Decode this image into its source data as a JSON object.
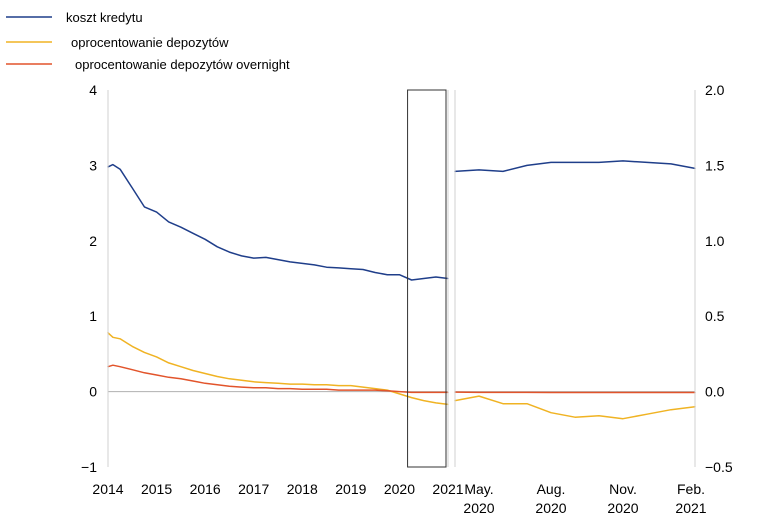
{
  "chart_data": [
    {
      "type": "line",
      "panel": "left",
      "xlim": [
        2014,
        2021
      ],
      "ylim": [
        -1,
        4
      ],
      "x_ticks": [
        2014,
        2015,
        2016,
        2017,
        2018,
        2019,
        2020,
        2021
      ],
      "x_tick_labels": [
        "2014",
        "2015",
        "2016",
        "2017",
        "2018",
        "2019",
        "2020",
        "2021"
      ],
      "y_ticks": [
        -1,
        0,
        1,
        2,
        3,
        4
      ],
      "y_tick_labels": [
        "−1",
        "0",
        "1",
        "2",
        "3",
        "4"
      ],
      "highlight_box": [
        2020.25,
        2021
      ],
      "series": [
        {
          "name": "koszt kredytu",
          "color": "#1f3e8a",
          "x": [
            2014,
            2014.1,
            2014.25,
            2014.5,
            2014.75,
            2015,
            2015.25,
            2015.5,
            2015.75,
            2016,
            2016.25,
            2016.5,
            2016.75,
            2017,
            2017.25,
            2017.5,
            2017.75,
            2018,
            2018.25,
            2018.5,
            2018.75,
            2019,
            2019.25,
            2019.5,
            2019.75,
            2020,
            2020.25,
            2020.5,
            2020.75,
            2021
          ],
          "y": [
            2.98,
            3.01,
            2.95,
            2.7,
            2.45,
            2.38,
            2.25,
            2.18,
            2.1,
            2.02,
            1.92,
            1.85,
            1.8,
            1.77,
            1.78,
            1.75,
            1.72,
            1.7,
            1.68,
            1.65,
            1.64,
            1.63,
            1.62,
            1.58,
            1.55,
            1.55,
            1.48,
            1.5,
            1.52,
            1.5
          ]
        },
        {
          "name": "oprocentowanie depozytów",
          "color": "#f0b323",
          "x": [
            2014,
            2014.1,
            2014.25,
            2014.5,
            2014.75,
            2015,
            2015.25,
            2015.5,
            2015.75,
            2016,
            2016.25,
            2016.5,
            2016.75,
            2017,
            2017.25,
            2017.5,
            2017.75,
            2018,
            2018.25,
            2018.5,
            2018.75,
            2019,
            2019.25,
            2019.5,
            2019.75,
            2020,
            2020.25,
            2020.5,
            2020.75,
            2021
          ],
          "y": [
            0.78,
            0.72,
            0.7,
            0.6,
            0.52,
            0.46,
            0.38,
            0.33,
            0.28,
            0.24,
            0.2,
            0.17,
            0.15,
            0.13,
            0.12,
            0.11,
            0.1,
            0.1,
            0.09,
            0.09,
            0.08,
            0.08,
            0.06,
            0.04,
            0.02,
            -0.03,
            -0.08,
            -0.12,
            -0.15,
            -0.17
          ]
        },
        {
          "name": "oprocentowanie depozytów overnight",
          "color": "#e2542b",
          "x": [
            2014,
            2014.1,
            2014.25,
            2014.5,
            2014.75,
            2015,
            2015.25,
            2015.5,
            2015.75,
            2016,
            2016.25,
            2016.5,
            2016.75,
            2017,
            2017.25,
            2017.5,
            2017.75,
            2018,
            2018.25,
            2018.5,
            2018.75,
            2019,
            2019.25,
            2019.5,
            2019.75,
            2020,
            2020.25,
            2020.5,
            2020.75,
            2021
          ],
          "y": [
            0.33,
            0.35,
            0.33,
            0.29,
            0.25,
            0.22,
            0.19,
            0.17,
            0.14,
            0.11,
            0.09,
            0.07,
            0.06,
            0.05,
            0.05,
            0.04,
            0.04,
            0.03,
            0.03,
            0.03,
            0.02,
            0.02,
            0.02,
            0.02,
            0.01,
            0.0,
            -0.01,
            -0.01,
            -0.01,
            -0.01
          ]
        }
      ]
    },
    {
      "type": "line",
      "panel": "right",
      "xlim": [
        0,
        10
      ],
      "ylim": [
        -0.5,
        2.0
      ],
      "x_ticks": [
        1,
        4,
        7,
        10
      ],
      "x_tick_labels": [
        [
          "May.",
          "2020"
        ],
        [
          "Aug.",
          "2020"
        ],
        [
          "Nov.",
          "2020"
        ],
        [
          "Feb.",
          "2021"
        ]
      ],
      "y_ticks": [
        -0.5,
        0.0,
        0.5,
        1.0,
        1.5,
        2.0
      ],
      "y_tick_labels": [
        "−0.5",
        "0.0",
        "0.5",
        "1.0",
        "1.5",
        "2.0"
      ],
      "series": [
        {
          "name": "koszt kredytu",
          "color": "#1f3e8a",
          "x": [
            0,
            1,
            2,
            3,
            4,
            5,
            6,
            7,
            8,
            9,
            10
          ],
          "y": [
            1.46,
            1.47,
            1.46,
            1.5,
            1.52,
            1.52,
            1.52,
            1.53,
            1.52,
            1.51,
            1.48
          ]
        },
        {
          "name": "oprocentowanie depozytów",
          "color": "#f0b323",
          "x": [
            0,
            1,
            2,
            3,
            4,
            5,
            6,
            7,
            8,
            9,
            10
          ],
          "y": [
            -0.06,
            -0.03,
            -0.08,
            -0.08,
            -0.14,
            -0.17,
            -0.16,
            -0.18,
            -0.15,
            -0.12,
            -0.1
          ]
        },
        {
          "name": "oprocentowanie depozytów overnight",
          "color": "#e2542b",
          "x": [
            0,
            1,
            2,
            3,
            4,
            5,
            6,
            7,
            8,
            9,
            10
          ],
          "y": [
            -0.003,
            -0.005,
            -0.005,
            -0.005,
            -0.006,
            -0.006,
            -0.006,
            -0.006,
            -0.006,
            -0.006,
            -0.006
          ]
        }
      ]
    }
  ],
  "legend": [
    {
      "label": "koszt kredytu",
      "color": "#1f3e8a"
    },
    {
      "label": "oprocentowanie depozytów",
      "color": "#f0b323"
    },
    {
      "label": "oprocentowanie depozytów overnight",
      "color": "#e2542b"
    }
  ]
}
